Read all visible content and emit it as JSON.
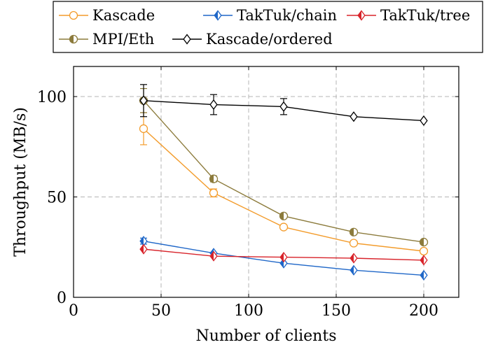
{
  "chart_data": {
    "type": "line",
    "xlabel": "Number of clients",
    "ylabel": "Throughput (MB/s)",
    "xlim": [
      0,
      220
    ],
    "ylim": [
      0,
      115
    ],
    "xticks": [
      0,
      50,
      100,
      150,
      200
    ],
    "yticks": [
      0,
      50,
      100
    ],
    "grid": true,
    "legend_position": "top, outside plot, 3 columns",
    "series": [
      {
        "name": "Kascade",
        "marker": "circle-open",
        "color": "#F39C2C",
        "points": [
          {
            "x": 40,
            "y": 84,
            "err": 8
          },
          {
            "x": 80,
            "y": 52,
            "err": 2
          },
          {
            "x": 120,
            "y": 35,
            "err": 0
          },
          {
            "x": 160,
            "y": 27,
            "err": 0
          },
          {
            "x": 200,
            "y": 23,
            "err": 0
          }
        ]
      },
      {
        "name": "TakTuk/chain",
        "marker": "diamond-half",
        "color": "#1F67C8",
        "points": [
          {
            "x": 40,
            "y": 28,
            "err": 1.5
          },
          {
            "x": 80,
            "y": 22,
            "err": 0
          },
          {
            "x": 120,
            "y": 17,
            "err": 0
          },
          {
            "x": 160,
            "y": 13.5,
            "err": 0
          },
          {
            "x": 200,
            "y": 11,
            "err": 0
          }
        ]
      },
      {
        "name": "TakTuk/tree",
        "marker": "diamond-half",
        "color": "#D8232A",
        "points": [
          {
            "x": 40,
            "y": 24,
            "err": 0
          },
          {
            "x": 80,
            "y": 20.5,
            "err": 0
          },
          {
            "x": 120,
            "y": 20,
            "err": 0
          },
          {
            "x": 160,
            "y": 19.5,
            "err": 0
          },
          {
            "x": 200,
            "y": 18.5,
            "err": 0
          }
        ]
      },
      {
        "name": "MPI/Eth",
        "marker": "circle-half",
        "color": "#8C7B3C",
        "points": [
          {
            "x": 40,
            "y": 98,
            "err": 6
          },
          {
            "x": 80,
            "y": 59,
            "err": 1.5
          },
          {
            "x": 120,
            "y": 40.5,
            "err": 0
          },
          {
            "x": 160,
            "y": 32.5,
            "err": 0
          },
          {
            "x": 200,
            "y": 27.5,
            "err": 0
          }
        ]
      },
      {
        "name": "Kascade/ordered",
        "marker": "diamond-open",
        "color": "#000000",
        "points": [
          {
            "x": 40,
            "y": 98,
            "err": 8
          },
          {
            "x": 80,
            "y": 96,
            "err": 5
          },
          {
            "x": 120,
            "y": 95,
            "err": 4
          },
          {
            "x": 160,
            "y": 90,
            "err": 0
          },
          {
            "x": 200,
            "y": 88,
            "err": 0
          }
        ]
      }
    ]
  }
}
